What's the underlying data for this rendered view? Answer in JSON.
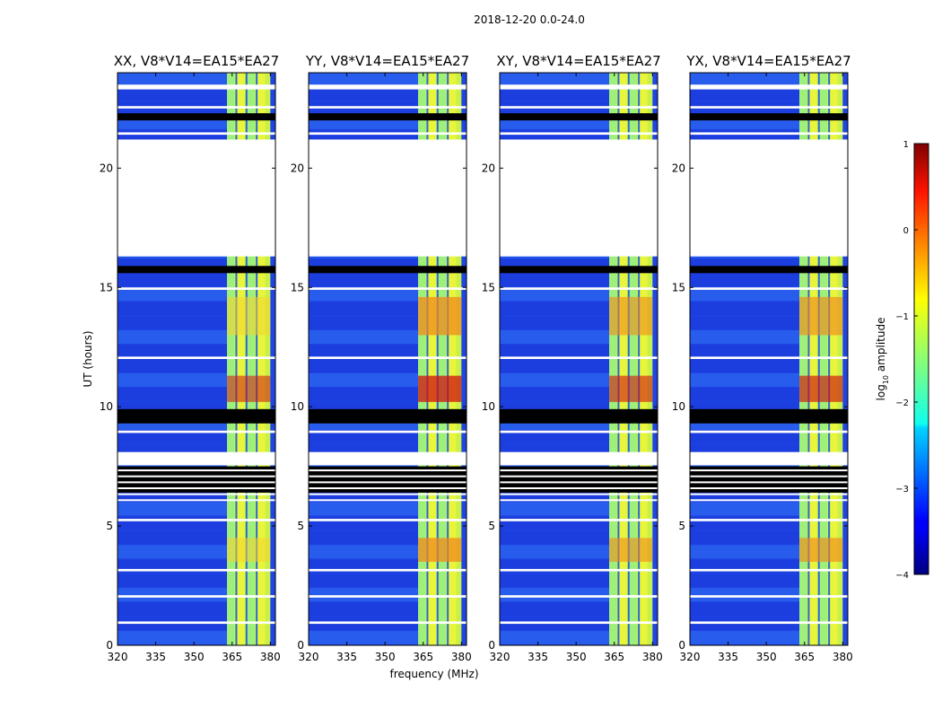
{
  "chart_data": {
    "type": "heatmap",
    "suptitle": "2018-12-20 0.0-24.0",
    "xlabel": "frequency (MHz)",
    "ylabel": "UT (hours)",
    "xlim": [
      320,
      382
    ],
    "ylim": [
      0,
      24
    ],
    "xticks": [
      320,
      335,
      350,
      365,
      380
    ],
    "yticks": [
      0,
      5,
      10,
      15,
      20
    ],
    "panels": [
      {
        "title": "XX, V8*V14=EA15*EA27",
        "peak_band": [
          0.55,
          1.0
        ]
      },
      {
        "title": "YY, V8*V14=EA15*EA27",
        "peak_band": [
          0.75,
          1.0
        ]
      },
      {
        "title": "XY, V8*V14=EA15*EA27",
        "peak_band": [
          0.6,
          1.0
        ]
      },
      {
        "title": "YX, V8*V14=EA15*EA27",
        "peak_band": [
          0.65,
          1.0
        ]
      }
    ],
    "colorbar": {
      "label": "log10 amplitude",
      "label_main": "log",
      "label_sub": "10",
      "label_rest": " amplitude",
      "range": [
        -4,
        1
      ],
      "ticks": [
        {
          "v": 1,
          "t": "1"
        },
        {
          "v": 0,
          "t": "0"
        },
        {
          "v": -1,
          "t": "−1"
        },
        {
          "v": -2,
          "t": "−2"
        },
        {
          "v": -3,
          "t": "−3"
        },
        {
          "v": -4,
          "t": "−4"
        }
      ]
    },
    "bright_band_mhz": [
      363,
      380
    ],
    "bright_band_columns_mhz": [
      [
        363,
        366
      ],
      [
        367,
        370
      ],
      [
        371,
        374
      ],
      [
        375,
        378
      ]
    ],
    "flag_gaps_ut": [
      [
        23.3,
        23.5
      ],
      [
        22.5,
        22.6
      ],
      [
        21.4,
        21.5
      ],
      [
        16.3,
        21.2
      ],
      [
        14.9,
        15.0
      ],
      [
        12.0,
        12.1
      ],
      [
        8.9,
        9.0
      ],
      [
        7.6,
        8.1
      ],
      [
        5.2,
        5.3
      ],
      [
        3.1,
        3.2
      ],
      [
        2.0,
        2.1
      ],
      [
        0.9,
        1.0
      ]
    ],
    "black_bands_ut": [
      [
        22.0,
        22.3
      ],
      [
        15.6,
        15.9
      ],
      [
        9.3,
        9.9
      ],
      [
        6.4,
        7.5
      ]
    ],
    "strong_emission_ut": [
      [
        10.2,
        11.3
      ],
      [
        13.0,
        14.6
      ],
      [
        3.5,
        4.5
      ]
    ]
  }
}
